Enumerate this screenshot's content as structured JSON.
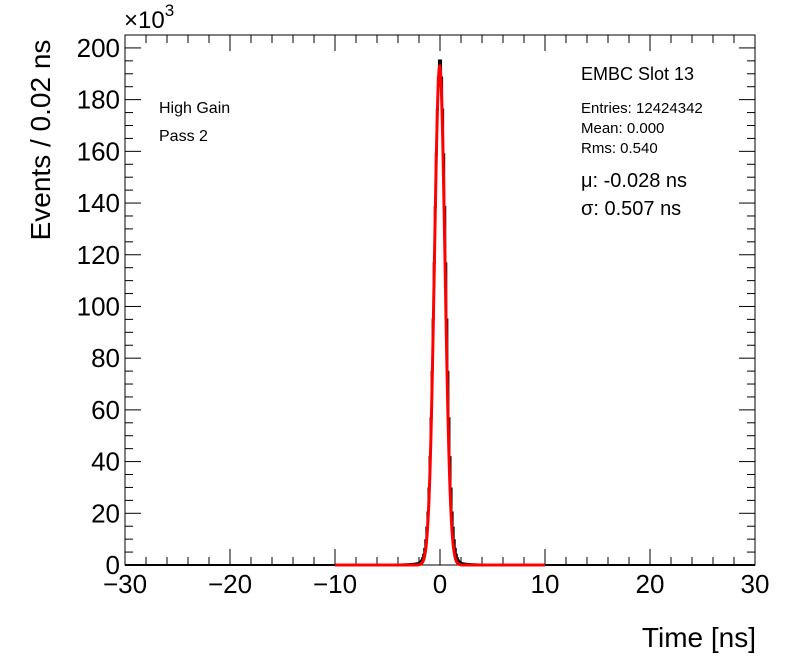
{
  "chart_data": {
    "type": "line",
    "xlabel": "Time [ns]",
    "ylabel": "Events / 0.02 ns",
    "y_multiplier": "×10",
    "y_multiplier_exp": "3",
    "xlim": [
      -30,
      30
    ],
    "ylim": [
      0,
      205
    ],
    "x_ticks": [
      -30,
      -20,
      -10,
      0,
      10,
      20,
      30
    ],
    "x_tick_labels": [
      "−30",
      "−20",
      "−10",
      "0",
      "10",
      "20",
      "30"
    ],
    "y_ticks": [
      0,
      20,
      40,
      60,
      80,
      100,
      120,
      140,
      160,
      180,
      200
    ],
    "y_tick_labels": [
      "0",
      "20",
      "40",
      "60",
      "80",
      "100",
      "120",
      "140",
      "160",
      "180",
      "200"
    ],
    "grid": false,
    "series": [
      {
        "kind": "histogram",
        "color": "#000000",
        "peak": 196,
        "mean": 0.0,
        "rms": 0.54
      },
      {
        "kind": "gaussian-fit",
        "color": "#ff0000",
        "mu": -0.028,
        "sigma": 0.507,
        "amplitude": 193,
        "range": [
          -10,
          10
        ]
      }
    ],
    "annotations": {
      "left": [
        "High Gain",
        "Pass 2"
      ],
      "title": "EMBC Slot 13",
      "stats": [
        "Entries: 12424342",
        "Mean: 0.000",
        "Rms: 0.540"
      ],
      "fit": [
        "μ: -0.028 ns",
        "σ: 0.507 ns"
      ]
    }
  }
}
